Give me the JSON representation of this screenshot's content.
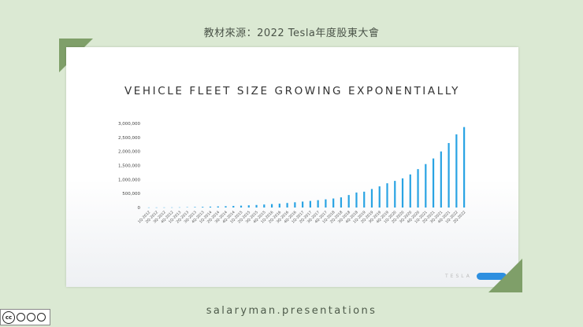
{
  "page": {
    "caption": "教材來源：2022 Tesla年度股東大會",
    "footer_brand": "salaryman.presentations",
    "colors": {
      "background": "#dbe9d3",
      "corner": "#7f9f69",
      "bar": "#29a3e3"
    }
  },
  "slide": {
    "brand_text": "TESLA",
    "icons": [
      "tesla-wordmark",
      "cc-by-nc-nd-license-icon"
    ]
  },
  "chart_data": {
    "type": "bar",
    "title": "VEHICLE FLEET SIZE GROWING EXPONENTIALLY",
    "xlabel": "",
    "ylabel": "",
    "ylim": [
      0,
      3000000
    ],
    "yticks": [
      0,
      500000,
      1000000,
      1500000,
      2000000,
      2500000,
      3000000
    ],
    "ytick_labels": [
      "0",
      "500,000",
      "1,000,000",
      "1,500,000",
      "2,000,000",
      "2,500,000",
      "3,000,000"
    ],
    "grid": false,
    "categories": [
      "1Q-2012",
      "2Q-2012",
      "3Q-2012",
      "4Q-2012",
      "1Q-2013",
      "2Q-2013",
      "3Q-2013",
      "4Q-2013",
      "1Q-2014",
      "2Q-2014",
      "3Q-2014",
      "4Q-2014",
      "1Q-2015",
      "2Q-2015",
      "3Q-2015",
      "4Q-2015",
      "1Q-2016",
      "2Q-2016",
      "3Q-2016",
      "4Q-2016",
      "1Q-2017",
      "2Q-2017",
      "3Q-2017",
      "4Q-2017",
      "1Q-2018",
      "2Q-2018",
      "3Q-2018",
      "4Q-2018",
      "1Q-2019",
      "2Q-2019",
      "3Q-2019",
      "4Q-2019",
      "1Q-2020",
      "2Q-2020",
      "3Q-2020",
      "4Q-2020",
      "1Q-2021",
      "2Q-2021",
      "3Q-2021",
      "4Q-2021",
      "1Q-2022",
      "2Q-2022"
    ],
    "tick_labels": [
      "1Q-2012",
      "2Q-2012",
      "3Q-2012",
      "4Q-2012",
      "1Q-2013",
      "2Q-2013",
      "3Q-2013",
      "4Q-2013",
      "1Q-2014",
      "2Q-2014",
      "3Q-2014",
      "4Q-2014",
      "1Q-2015",
      "2Q-2015",
      "3Q-2015",
      "4Q-2015",
      "1Q-2016",
      "2Q-2016",
      "3Q-2016",
      "4Q-2016",
      "1Q-2017",
      "2Q-2017",
      "3Q-2017",
      "4Q-2017",
      "1Q-2018",
      "2Q-2018",
      "3Q-2018",
      "4Q-2018",
      "1Q-2019",
      "2Q-2019",
      "3Q-2019",
      "4Q-2019",
      "1Q-2020",
      "2Q-2020",
      "3Q-2020",
      "4Q-2020",
      "1Q-2021",
      "2Q-2021",
      "3Q-2021",
      "4Q-2021",
      "1Q-2022",
      "2Q-2022"
    ],
    "values": [
      3000,
      3500,
      4000,
      5000,
      7000,
      12000,
      18000,
      25000,
      32000,
      40000,
      48000,
      57000,
      67000,
      78000,
      90000,
      107000,
      122000,
      137000,
      162000,
      187000,
      212000,
      235000,
      262000,
      292000,
      322000,
      362000,
      445000,
      535000,
      565000,
      660000,
      755000,
      865000,
      950000,
      1040000,
      1180000,
      1370000,
      1550000,
      1750000,
      2000000,
      2300000,
      2610000,
      2870000
    ]
  }
}
